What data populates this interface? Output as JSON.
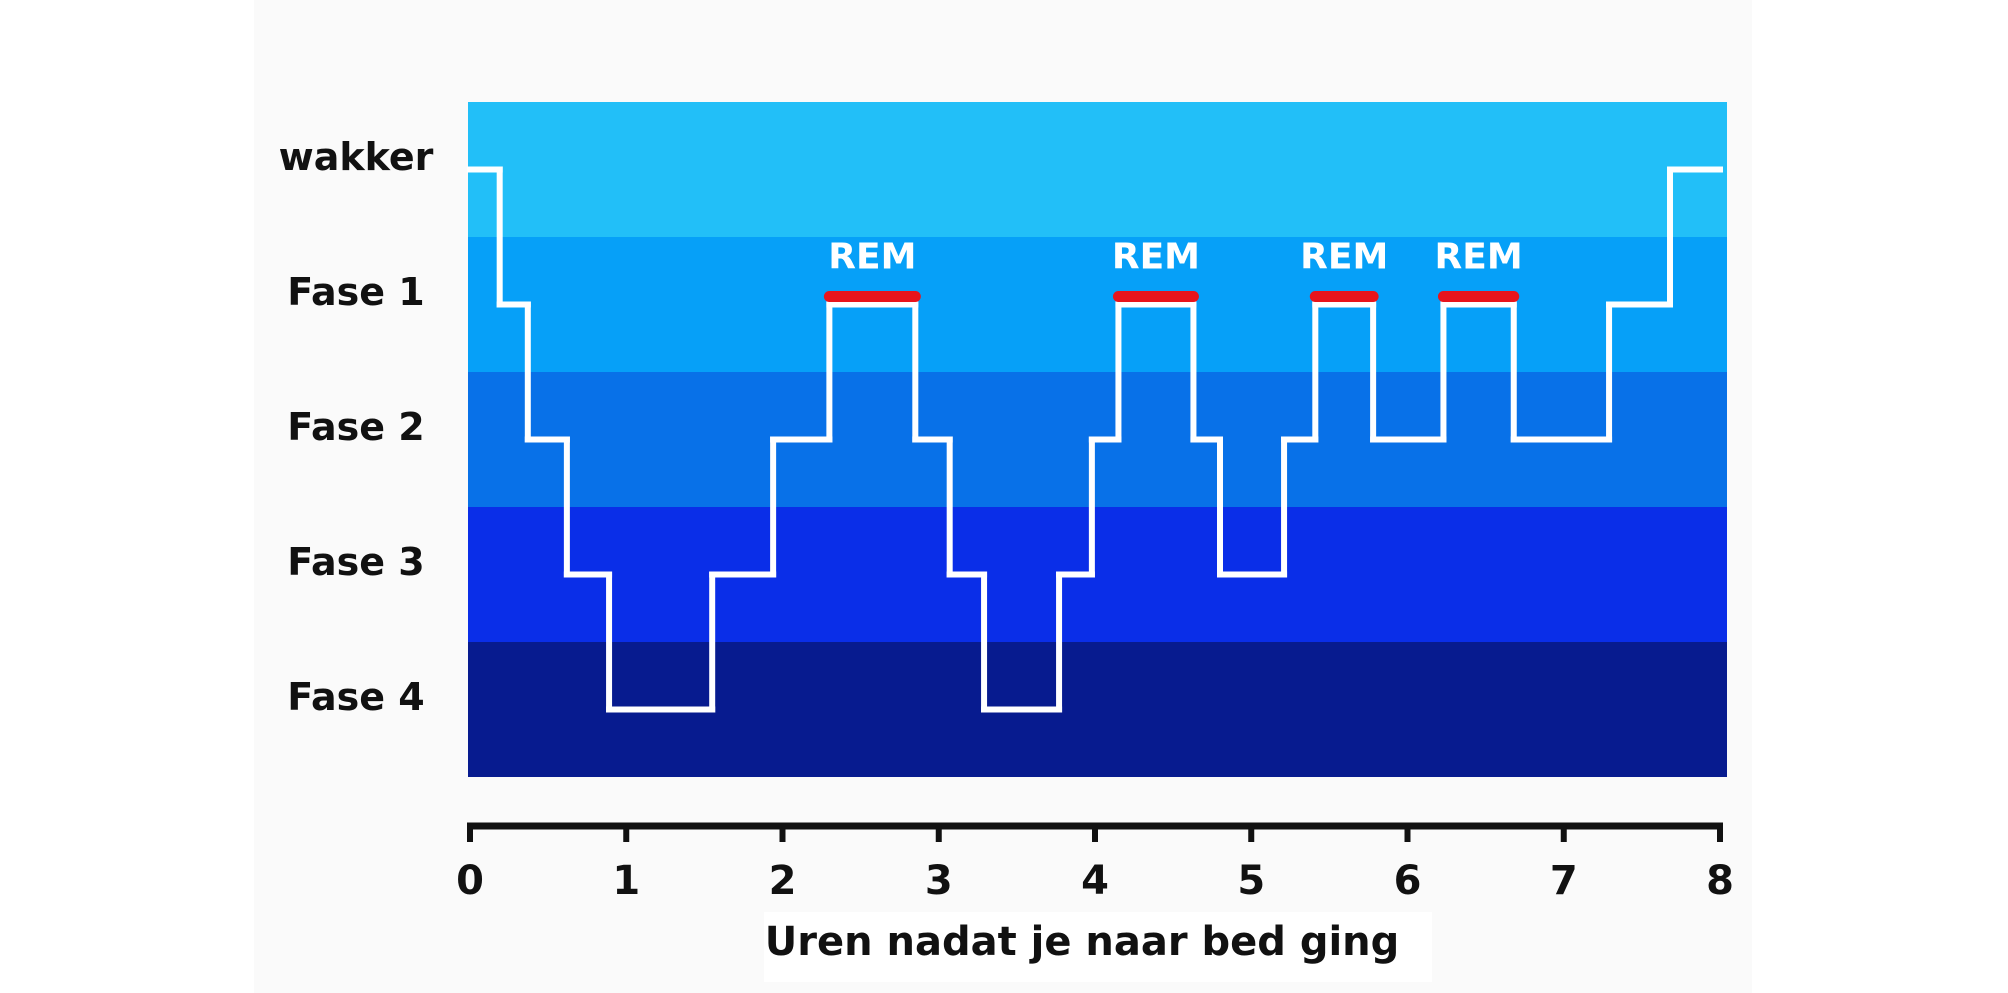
{
  "chart_data": {
    "type": "step",
    "x_label": "Uren nadat je naar bed ging",
    "y_categories": [
      "wakker",
      "Fase 1",
      "Fase 2",
      "Fase 3",
      "Fase 4"
    ],
    "band_colors": [
      "#22bff8",
      "#06a0f8",
      "#0871e8",
      "#0a2ee8",
      "#071b8f"
    ],
    "line_color": "#ffffff",
    "x": [
      0,
      0.19,
      0.37,
      0.62,
      0.89,
      1.55,
      1.94,
      2.3,
      2.85,
      3.07,
      3.29,
      3.77,
      3.98,
      4.15,
      4.63,
      4.8,
      5.21,
      5.41,
      5.78,
      6.23,
      6.68,
      7.29,
      7.68
    ],
    "values": [
      "wakker",
      "Fase 1",
      "Fase 2",
      "Fase 3",
      "Fase 4",
      "Fase 3",
      "Fase 2",
      "Fase 1",
      "Fase 2",
      "Fase 3",
      "Fase 4",
      "Fase 3",
      "Fase 2",
      "Fase 1",
      "Fase 2",
      "Fase 3",
      "Fase 2",
      "Fase 1",
      "Fase 2",
      "Fase 1",
      "Fase 2",
      "Fase 1",
      "wakker"
    ],
    "xlim": [
      0,
      8
    ],
    "xticks": [
      0,
      1,
      2,
      3,
      4,
      5,
      6,
      7,
      8
    ],
    "annotations": [
      {
        "text": "REM",
        "x": [
          2.3,
          2.85
        ],
        "color": "#e8141c"
      },
      {
        "text": "REM",
        "x": [
          4.15,
          4.63
        ],
        "color": "#e8141c"
      },
      {
        "text": "REM",
        "x": [
          5.41,
          5.78
        ],
        "color": "#e8141c"
      },
      {
        "text": "REM",
        "x": [
          6.23,
          6.68
        ],
        "color": "#e8141c"
      }
    ]
  }
}
